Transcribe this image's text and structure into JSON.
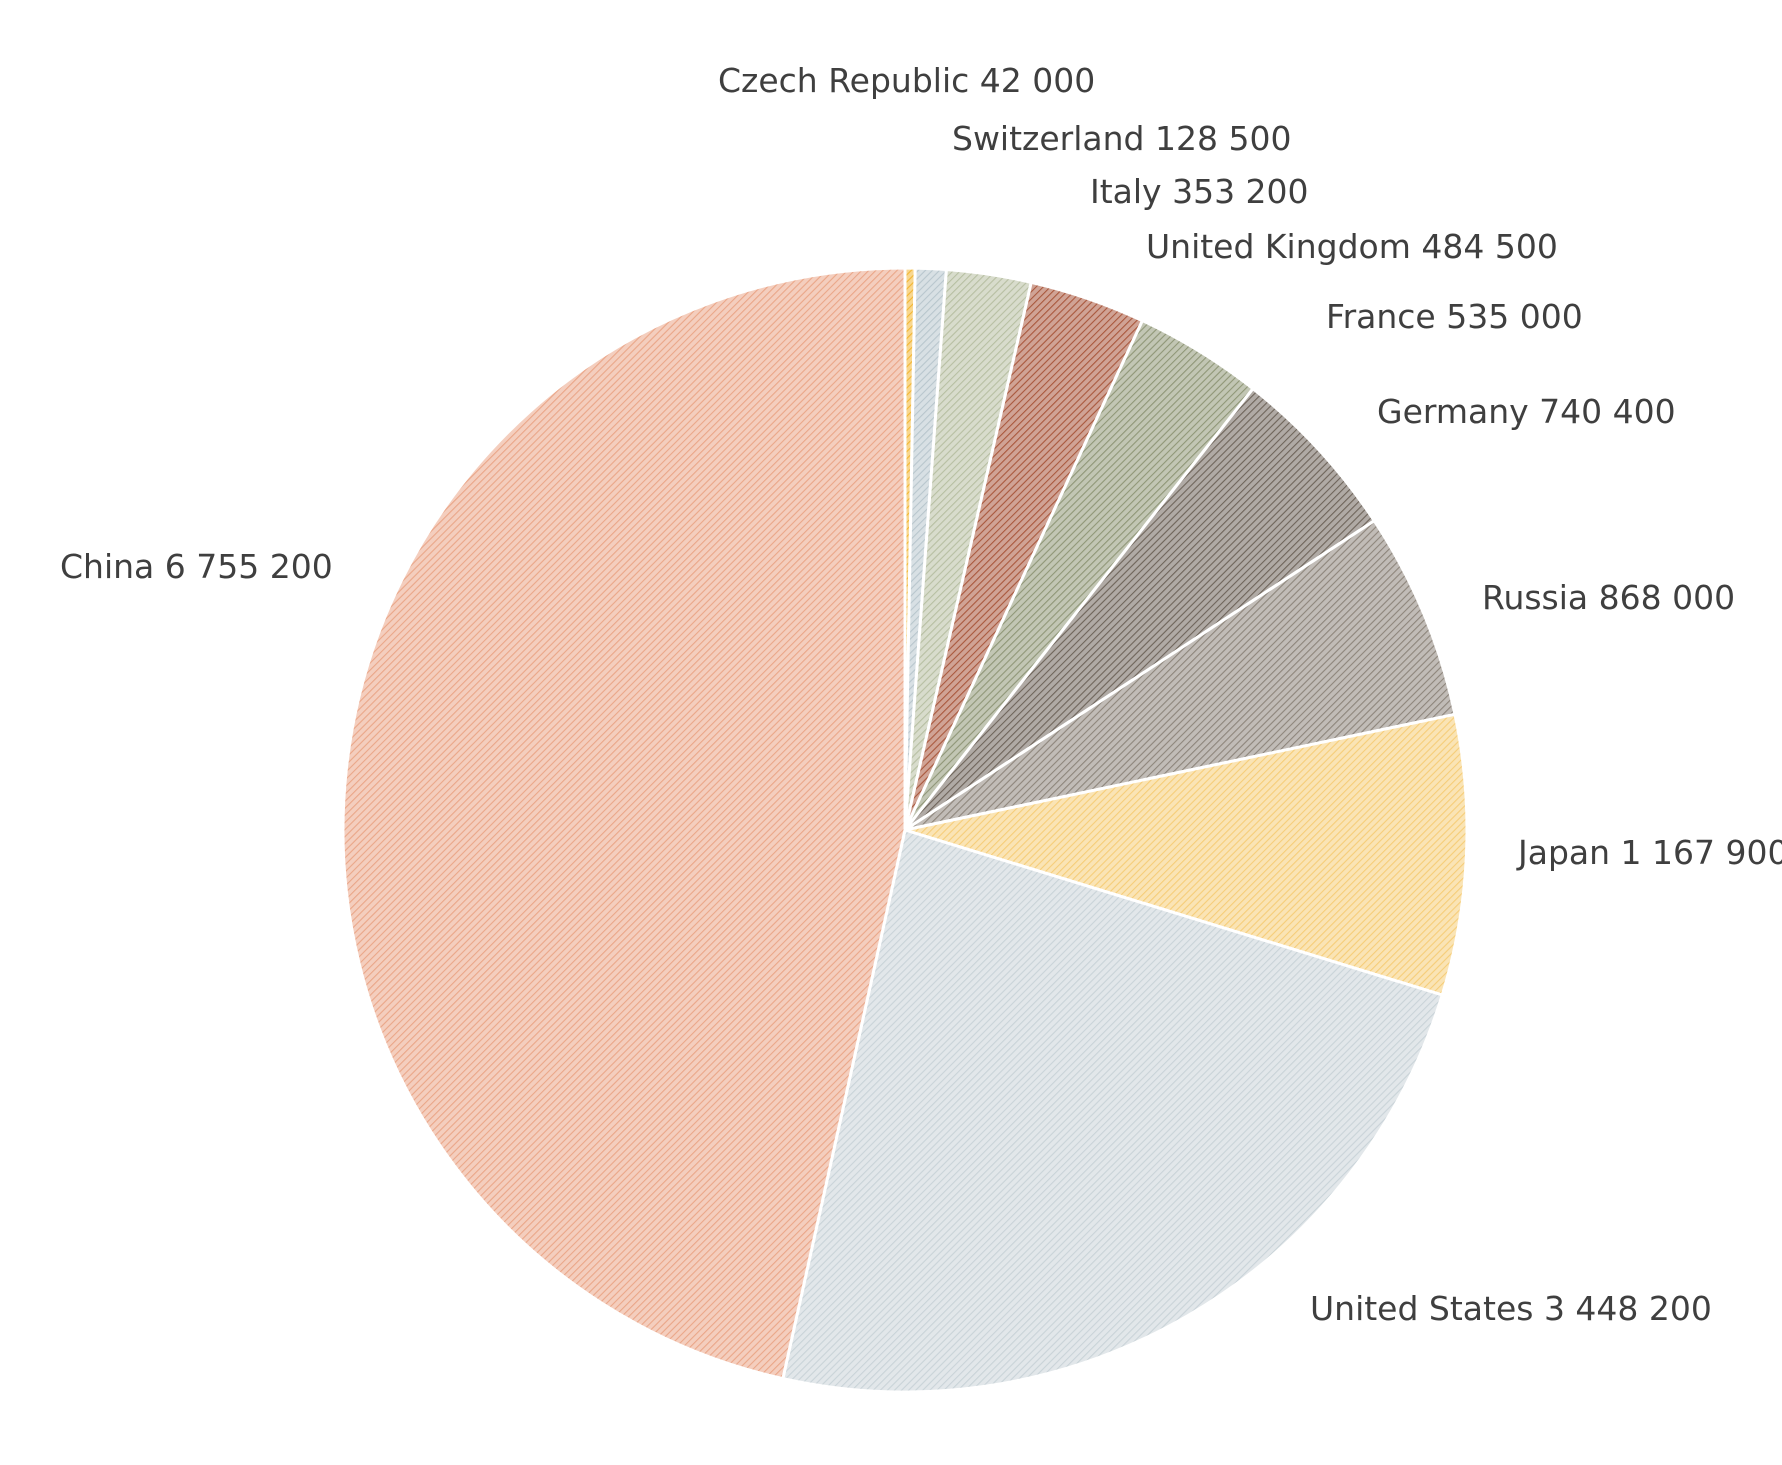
{
  "chart_data": {
    "type": "pie",
    "title": "",
    "legend": "none",
    "start_angle_deg": 0,
    "direction": "clockwise",
    "slices": [
      {
        "label": "Czech Republic",
        "value": 42000,
        "value_text": "42 000",
        "color": "#f2b632"
      },
      {
        "label": "Switzerland",
        "value": 128500,
        "value_text": "128 500",
        "color": "#b8c6cd"
      },
      {
        "label": "Italy",
        "value": 353200,
        "value_text": "353 200",
        "color": "#b7bfa2"
      },
      {
        "label": "United Kingdom",
        "value": 484500,
        "value_text": "484 500",
        "color": "#a9583d"
      },
      {
        "label": "France",
        "value": 535000,
        "value_text": "535 000",
        "color": "#8f9677"
      },
      {
        "label": "Germany",
        "value": 740400,
        "value_text": "740 400",
        "color": "#6e645a"
      },
      {
        "label": "Russia",
        "value": 868000,
        "value_text": "868 000",
        "color": "#8d857b"
      },
      {
        "label": "Japan",
        "value": 1167900,
        "value_text": "1 167 900",
        "color": "#f6cd78"
      },
      {
        "label": "United States",
        "value": 3448200,
        "value_text": "3 448 200",
        "color": "#c9d3d8"
      },
      {
        "label": "China",
        "value": 6755200,
        "value_text": "6 755 200",
        "color": "#eaa688"
      }
    ]
  }
}
